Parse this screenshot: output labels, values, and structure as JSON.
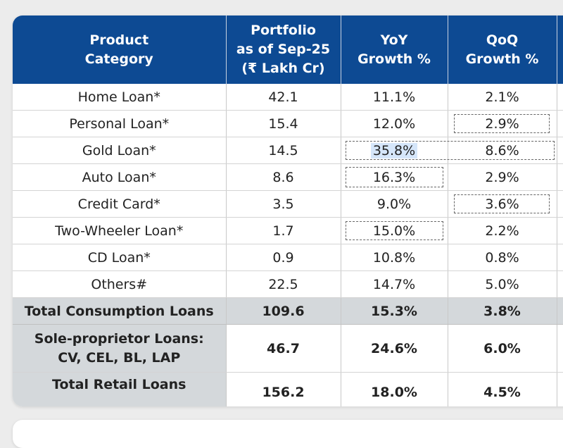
{
  "headers": {
    "product": [
      "Product",
      "Category"
    ],
    "portfolio": [
      "Portfolio",
      "as of Sep-25",
      "(₹ Lakh Cr)"
    ],
    "yoy": [
      "YoY",
      "Growth %"
    ],
    "qoq": [
      "QoQ",
      "Growth %"
    ]
  },
  "rows": [
    {
      "category": "Home Loan*",
      "portfolio": "42.1",
      "yoy": "11.1%",
      "qoq": "2.1%"
    },
    {
      "category": "Personal Loan*",
      "portfolio": "15.4",
      "yoy": "12.0%",
      "qoq": "2.9%"
    },
    {
      "category": "Gold Loan*",
      "portfolio": "14.5",
      "yoy": "35.8%",
      "qoq": "8.6%"
    },
    {
      "category": "Auto Loan*",
      "portfolio": "8.6",
      "yoy": "16.3%",
      "qoq": "2.9%"
    },
    {
      "category": "Credit Card*",
      "portfolio": "3.5",
      "yoy": "9.0%",
      "qoq": "3.6%"
    },
    {
      "category": "Two-Wheeler Loan*",
      "portfolio": "1.7",
      "yoy": "15.0%",
      "qoq": "2.2%"
    },
    {
      "category": "CD Loan*",
      "portfolio": "0.9",
      "yoy": "10.8%",
      "qoq": "0.8%"
    },
    {
      "category": "Others#",
      "portfolio": "22.5",
      "yoy": "14.7%",
      "qoq": "5.0%"
    }
  ],
  "total_consumption": {
    "category": "Total Consumption Loans",
    "portfolio": "109.6",
    "yoy": "15.3%",
    "qoq": "3.8%"
  },
  "sole_proprietor": {
    "category": [
      "Sole-proprietor Loans:",
      "CV, CEL, BL, LAP"
    ],
    "portfolio": "46.7",
    "yoy": "24.6%",
    "qoq": "6.0%"
  },
  "total_retail": {
    "category": "Total Retail Loans",
    "portfolio": "156.2",
    "yoy": "18.0%",
    "qoq": "4.5%"
  },
  "colors": {
    "header_bg": "#0d4a93",
    "total_bg": "#d4d8db",
    "highlight": "#d5e6fa"
  }
}
